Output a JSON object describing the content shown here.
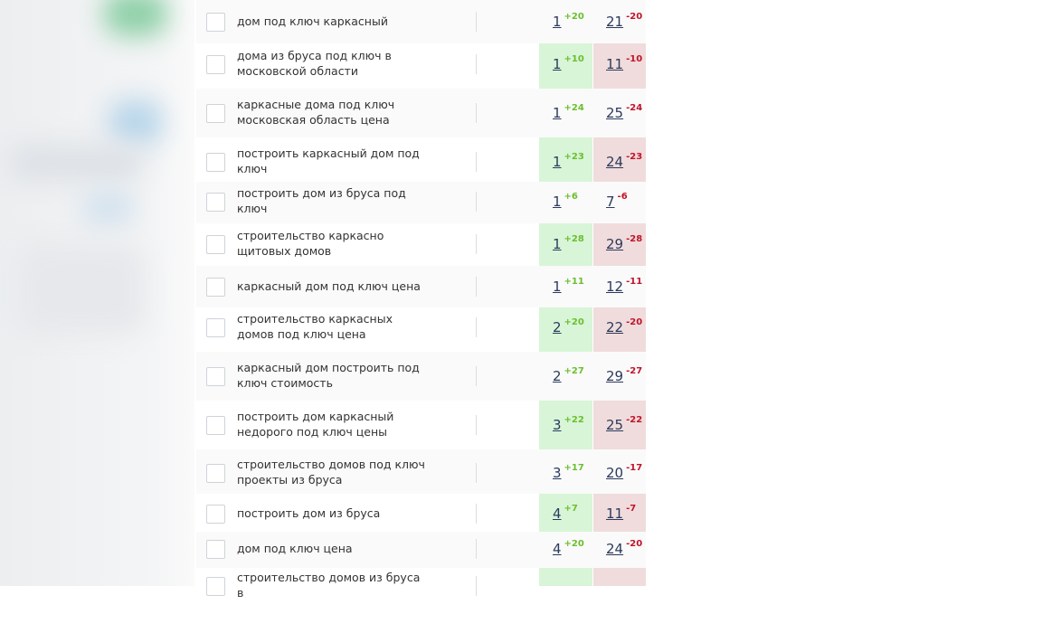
{
  "rows": [
    {
      "keyword": "дом под ключ каркасный",
      "pos1": 1,
      "delta1": "+20",
      "pos2": 21,
      "delta2": "-20"
    },
    {
      "keyword": "дома из бруса под ключ в московской области",
      "pos1": 1,
      "delta1": "+10",
      "pos2": 11,
      "delta2": "-10"
    },
    {
      "keyword": "каркасные дома под ключ московская область цена",
      "pos1": 1,
      "delta1": "+24",
      "pos2": 25,
      "delta2": "-24"
    },
    {
      "keyword": "построить каркасный дом под ключ",
      "pos1": 1,
      "delta1": "+23",
      "pos2": 24,
      "delta2": "-23"
    },
    {
      "keyword": "построить дом из бруса под ключ",
      "pos1": 1,
      "delta1": "+6",
      "pos2": 7,
      "delta2": "-6"
    },
    {
      "keyword": "строительство каркасно щитовых домов",
      "pos1": 1,
      "delta1": "+28",
      "pos2": 29,
      "delta2": "-28"
    },
    {
      "keyword": "каркасный дом под ключ цена",
      "pos1": 1,
      "delta1": "+11",
      "pos2": 12,
      "delta2": "-11"
    },
    {
      "keyword": "строительство каркасных домов под ключ цена",
      "pos1": 2,
      "delta1": "+20",
      "pos2": 22,
      "delta2": "-20"
    },
    {
      "keyword": "каркасный дом построить под ключ стоимость",
      "pos1": 2,
      "delta1": "+27",
      "pos2": 29,
      "delta2": "-27"
    },
    {
      "keyword": "построить дом каркасный недорого под ключ цены",
      "pos1": 3,
      "delta1": "+22",
      "pos2": 25,
      "delta2": "-22"
    },
    {
      "keyword": "строительство домов под ключ проекты из бруса",
      "pos1": 3,
      "delta1": "+17",
      "pos2": 20,
      "delta2": "-17"
    },
    {
      "keyword": "построить дом из бруса",
      "pos1": 4,
      "delta1": "+7",
      "pos2": 11,
      "delta2": "-7"
    },
    {
      "keyword": "дом под ключ цена",
      "pos1": 4,
      "delta1": "+20",
      "pos2": 24,
      "delta2": "-20"
    },
    {
      "keyword": "строительство домов из бруса в"
    }
  ]
}
